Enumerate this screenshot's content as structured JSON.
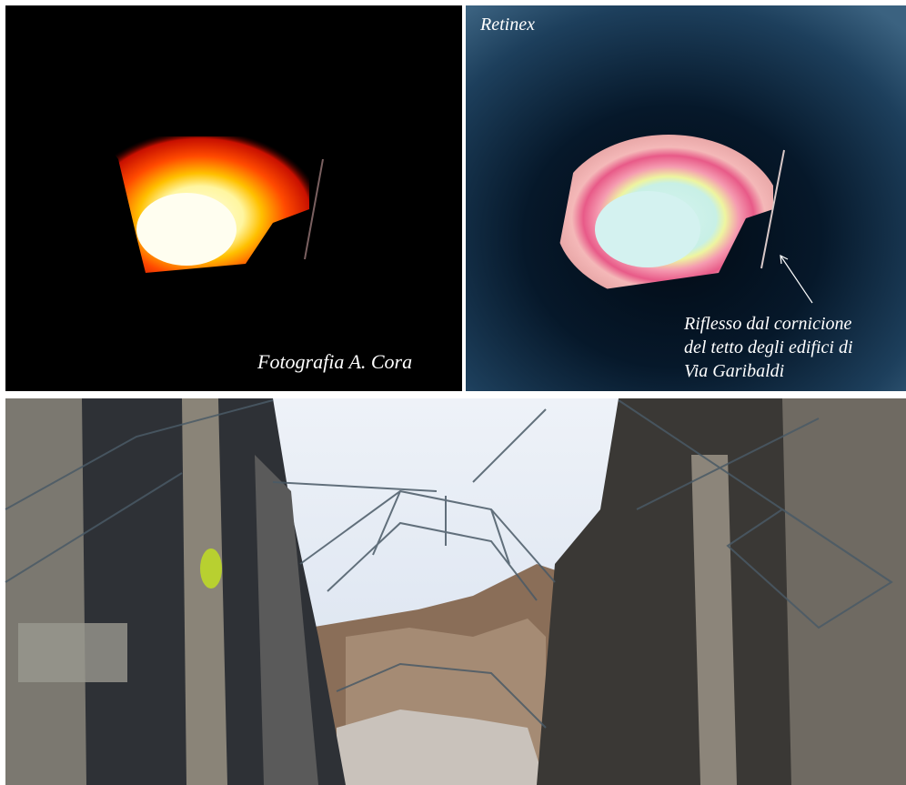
{
  "top_left": {
    "caption": "Fotografia A. Cora"
  },
  "top_right": {
    "label": "Retinex",
    "annotation": {
      "lines": [
        "Riflesso dal cornicione",
        "del tetto degli edifici di",
        "Via Garibaldi"
      ]
    }
  }
}
